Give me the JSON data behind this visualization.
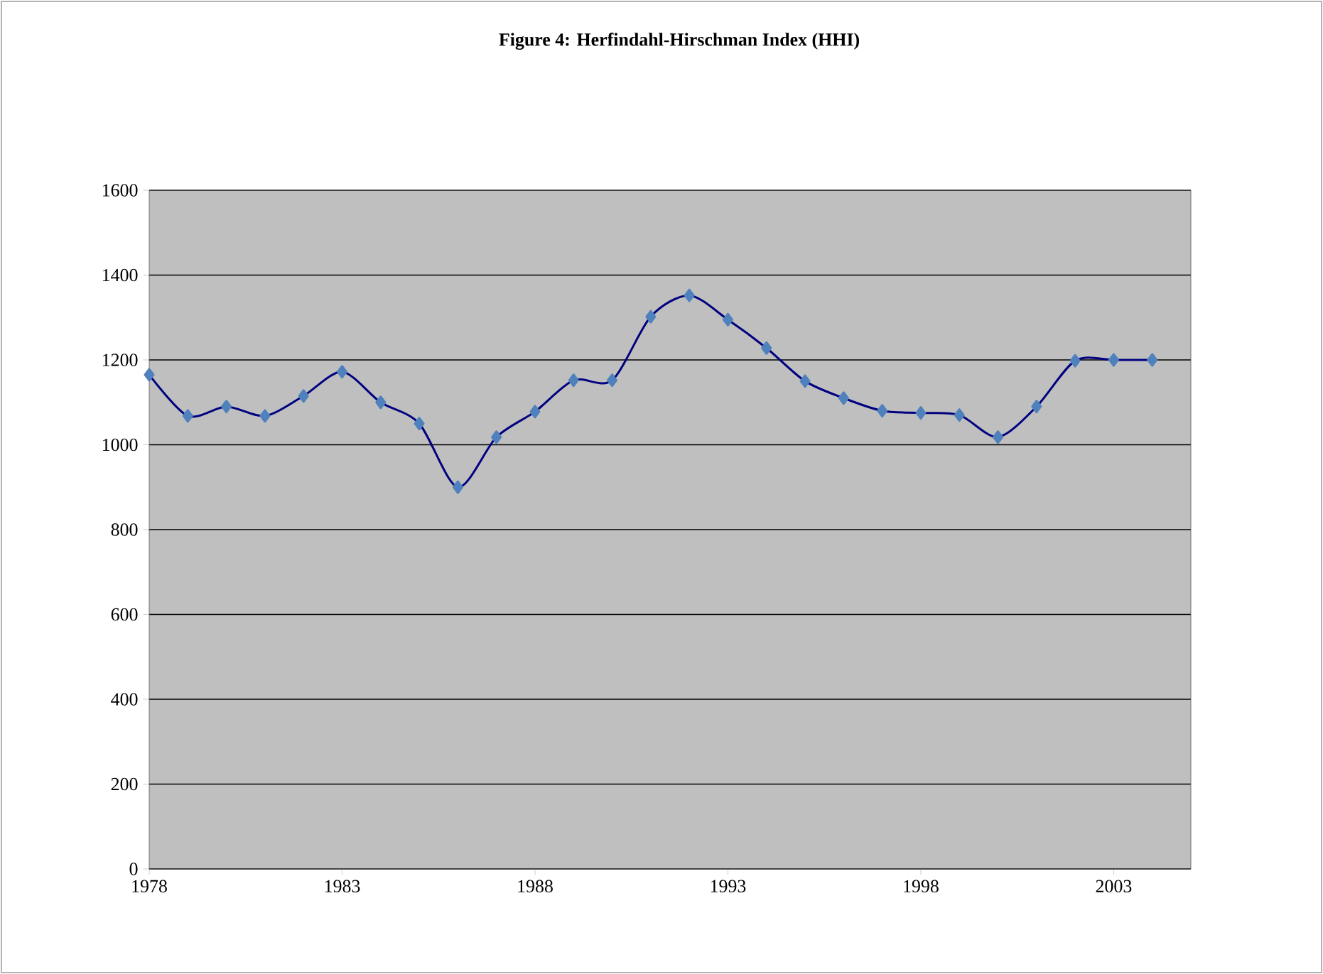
{
  "chart_data": {
    "type": "line",
    "title": "Figure 4: Herfindahl-Hirschman Index (HHI)",
    "xlim": [
      1978,
      2005
    ],
    "xticks": [
      1978,
      1983,
      1988,
      1993,
      1998,
      2003
    ],
    "ylim": [
      0,
      1600
    ],
    "yticks": [
      0,
      200,
      400,
      600,
      800,
      1000,
      1200,
      1400,
      1600
    ],
    "grid": "y",
    "marker": "diamond",
    "line_style": "solid",
    "series": [
      {
        "color": "#4f81bd",
        "x": [
          1978,
          1979,
          1980,
          1981,
          1982,
          1983,
          1984,
          1985,
          1986,
          1987,
          1988,
          1989,
          1990,
          1991,
          1992,
          1993,
          1994,
          1995,
          1996,
          1997,
          1998,
          1999,
          2000,
          2001,
          2002,
          2003,
          2004
        ],
        "values": [
          1165,
          1068,
          1090,
          1068,
          1115,
          1172,
          1100,
          1050,
          900,
          1018,
          1078,
          1152,
          1152,
          1302,
          1352,
          1295,
          1228,
          1150,
          1110,
          1080,
          1075,
          1070,
          1018,
          1090,
          1198,
          1200,
          1200
        ]
      }
    ]
  }
}
